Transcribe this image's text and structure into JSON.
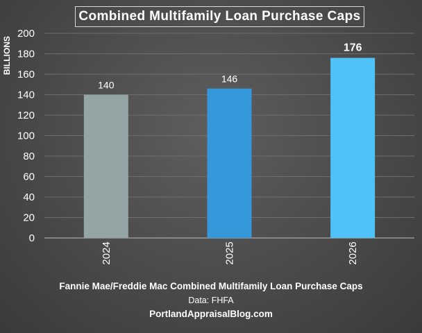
{
  "chart_data": {
    "type": "bar",
    "title": "Combined Multifamily Loan Purchase Caps",
    "ylabel": "BILLIONS",
    "xlabel": "",
    "categories": [
      "2024",
      "2025",
      "2026"
    ],
    "values": [
      140,
      146,
      176
    ],
    "data_labels": [
      "140",
      "146",
      "176"
    ],
    "highlight_label_index": 2,
    "bar_colors": [
      "#95a5a6",
      "#3498db",
      "#4fc3f7"
    ],
    "ylim": [
      0,
      200
    ],
    "yticks": [
      0,
      20,
      40,
      60,
      80,
      100,
      120,
      140,
      160,
      180,
      200
    ],
    "grid": true,
    "legend": "none"
  },
  "caption": {
    "line1": "Fannie Mae/Freddie Mac Combined Multifamily Loan Purchase Caps",
    "line2": "Data: FHFA",
    "line3": "PortlandAppraisalBlog.com"
  }
}
